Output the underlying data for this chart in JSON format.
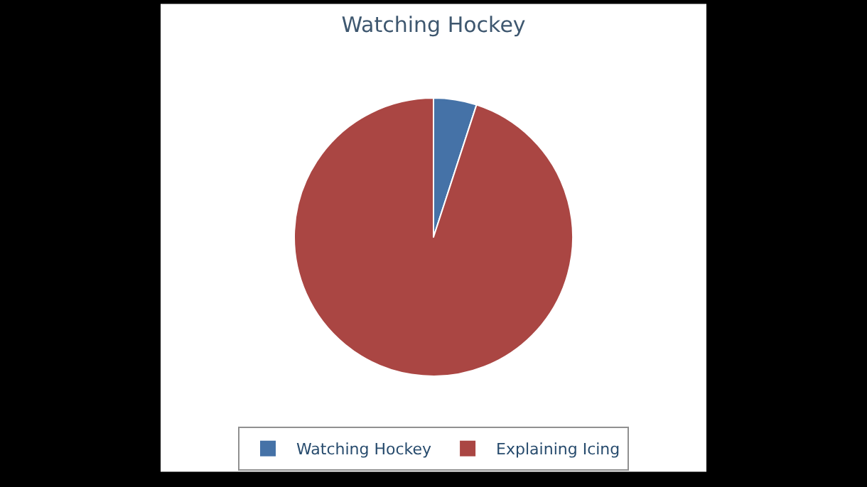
{
  "chart_data": {
    "type": "pie",
    "title": "Watching Hockey",
    "categories": [
      "Watching Hockey",
      "Explaining Icing"
    ],
    "values": [
      5,
      95
    ],
    "colors": [
      "#4572a7",
      "#aa4643"
    ],
    "legend": "bottom"
  }
}
